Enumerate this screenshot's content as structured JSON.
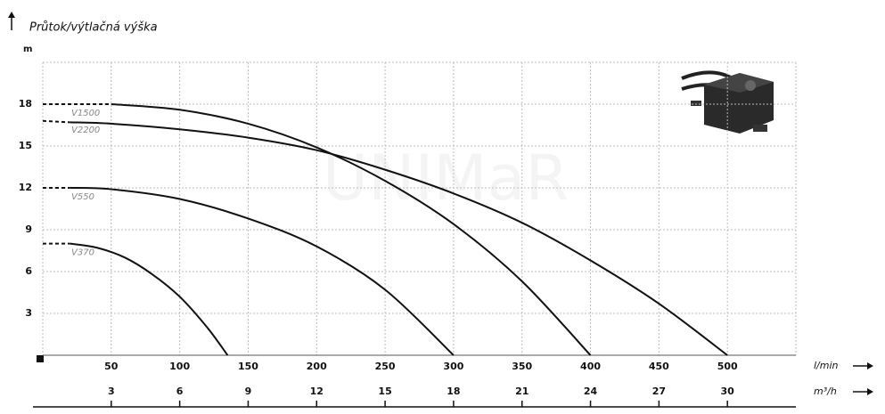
{
  "chart_data": {
    "type": "line",
    "title": "Průtok/výtlačná výška",
    "y_label": "m",
    "x_label": "l/min",
    "x2_label": "m³/h",
    "watermark": "UNIMaR",
    "xlim": [
      0,
      550
    ],
    "xticks": [
      50,
      100,
      150,
      200,
      250,
      300,
      350,
      400,
      450,
      500
    ],
    "x2lim": [
      0,
      33
    ],
    "x2ticks": [
      3,
      6,
      9,
      12,
      15,
      18,
      21,
      24,
      27,
      30
    ],
    "ylim": [
      0,
      21
    ],
    "yticks": [
      3,
      6,
      9,
      12,
      15,
      18
    ],
    "grid": true,
    "line_start_style": "dashed",
    "series": [
      {
        "name": "V1500",
        "color": "#111111",
        "x": [
          0,
          50,
          100,
          150,
          200,
          250,
          300,
          350,
          400
        ],
        "values": [
          18,
          18,
          17.6,
          16.6,
          14.9,
          12.5,
          9.4,
          5.3,
          0
        ]
      },
      {
        "name": "V2200",
        "color": "#111111",
        "x": [
          0,
          20,
          50,
          100,
          150,
          200,
          250,
          300,
          350,
          400,
          450,
          500
        ],
        "values": [
          16.8,
          16.7,
          16.6,
          16.2,
          15.6,
          14.7,
          13.3,
          11.6,
          9.5,
          6.8,
          3.7,
          0
        ]
      },
      {
        "name": "V550",
        "color": "#111111",
        "x": [
          0,
          20,
          50,
          100,
          150,
          200,
          250,
          300
        ],
        "values": [
          12,
          12,
          11.9,
          11.2,
          9.8,
          7.8,
          4.7,
          0
        ]
      },
      {
        "name": "V370",
        "color": "#111111",
        "x": [
          0,
          20,
          40,
          60,
          80,
          100,
          120,
          135
        ],
        "values": [
          8,
          8,
          7.7,
          7,
          5.8,
          4.2,
          2,
          0
        ]
      }
    ]
  }
}
